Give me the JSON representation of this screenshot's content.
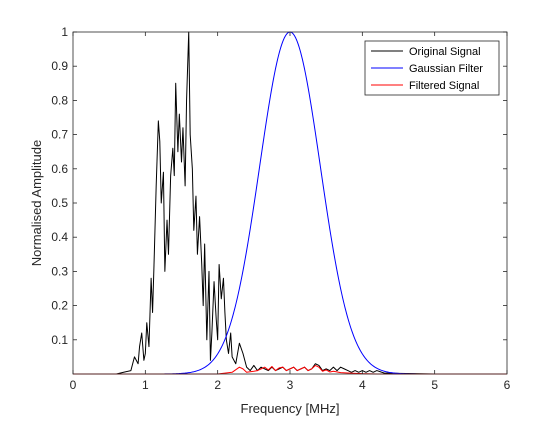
{
  "chart_data": {
    "type": "line",
    "xlabel": "Frequency [MHz]",
    "ylabel": "Normalised Amplitude",
    "xlim": [
      0,
      6
    ],
    "ylim": [
      0,
      1
    ],
    "xticks": [
      0,
      1,
      2,
      3,
      4,
      5,
      6
    ],
    "yticks": [
      0.1,
      0.2,
      0.3,
      0.4,
      0.5,
      0.6,
      0.7,
      0.8,
      0.9,
      1
    ],
    "grid": false,
    "legend_position": "top-right",
    "series": [
      {
        "name": "Original Signal",
        "color": "#000000",
        "x": [
          0,
          0.6,
          0.7,
          0.8,
          0.85,
          0.9,
          0.92,
          0.95,
          0.98,
          1.0,
          1.02,
          1.05,
          1.08,
          1.1,
          1.12,
          1.15,
          1.18,
          1.2,
          1.22,
          1.25,
          1.27,
          1.3,
          1.32,
          1.35,
          1.38,
          1.4,
          1.42,
          1.45,
          1.47,
          1.5,
          1.52,
          1.55,
          1.57,
          1.6,
          1.62,
          1.65,
          1.67,
          1.7,
          1.72,
          1.75,
          1.78,
          1.8,
          1.82,
          1.85,
          1.88,
          1.9,
          1.92,
          1.95,
          1.98,
          2.0,
          2.02,
          2.05,
          2.08,
          2.1,
          2.12,
          2.15,
          2.18,
          2.2,
          2.25,
          2.3,
          2.35,
          2.4,
          2.45,
          2.5,
          2.55,
          2.6,
          2.65,
          2.7,
          2.75,
          2.8,
          2.85,
          2.9,
          2.95,
          3.0,
          3.05,
          3.1,
          3.15,
          3.2,
          3.25,
          3.3,
          3.35,
          3.4,
          3.45,
          3.5,
          3.55,
          3.6,
          3.65,
          3.7,
          3.75,
          3.8,
          3.85,
          3.9,
          3.95,
          4.0,
          4.05,
          4.1,
          4.15,
          4.2,
          4.3,
          4.5,
          5.0,
          6.0
        ],
        "y": [
          0,
          0,
          0.005,
          0.01,
          0.05,
          0.03,
          0.08,
          0.12,
          0.04,
          0.06,
          0.15,
          0.08,
          0.28,
          0.18,
          0.32,
          0.55,
          0.74,
          0.68,
          0.5,
          0.59,
          0.3,
          0.45,
          0.35,
          0.58,
          0.66,
          0.58,
          0.85,
          0.65,
          0.76,
          0.62,
          0.72,
          0.55,
          0.8,
          1.0,
          0.7,
          0.6,
          0.42,
          0.52,
          0.35,
          0.46,
          0.32,
          0.2,
          0.38,
          0.1,
          0.3,
          0.04,
          0.12,
          0.27,
          0.16,
          0.1,
          0.32,
          0.22,
          0.28,
          0.18,
          0.1,
          0.06,
          0.12,
          0.05,
          0.03,
          0.09,
          0.06,
          0.02,
          0.01,
          0.025,
          0.01,
          0.02,
          0.015,
          0.01,
          0.02,
          0.01,
          0.015,
          0.02,
          0.01,
          0.015,
          0.02,
          0.01,
          0.015,
          0.02,
          0.01,
          0.015,
          0.03,
          0.025,
          0.01,
          0.015,
          0.01,
          0.02,
          0.01,
          0.02,
          0.015,
          0.01,
          0.005,
          0.01,
          0.005,
          0.01,
          0.005,
          0.01,
          0.005,
          0.01,
          0.003,
          0.002,
          0,
          0
        ]
      },
      {
        "name": "Gaussian Filter",
        "color": "#0000ff",
        "gaussian": {
          "center": 3.0,
          "sigma": 0.42,
          "amplitude": 1.0
        },
        "x": [
          0,
          1.5,
          1.8,
          2.0,
          2.2,
          2.4,
          2.5,
          2.6,
          2.7,
          2.8,
          2.9,
          3.0,
          3.1,
          3.2,
          3.3,
          3.4,
          3.5,
          3.6,
          3.8,
          4.0,
          4.2,
          4.5,
          6.0
        ],
        "y": [
          0,
          0.0017,
          0.0169,
          0.0589,
          0.1637,
          0.3604,
          0.4926,
          0.6357,
          0.7746,
          0.8929,
          0.9721,
          1.0,
          0.9721,
          0.8929,
          0.7746,
          0.6357,
          0.4926,
          0.3604,
          0.1637,
          0.0589,
          0.0169,
          0.0017,
          0
        ]
      },
      {
        "name": "Filtered Signal",
        "color": "#ff0000",
        "x": [
          0,
          2.0,
          2.2,
          2.3,
          2.35,
          2.4,
          2.5,
          2.55,
          2.6,
          2.65,
          2.7,
          2.75,
          2.8,
          2.85,
          2.9,
          2.95,
          3.0,
          3.05,
          3.1,
          3.15,
          3.2,
          3.25,
          3.3,
          3.35,
          3.4,
          3.45,
          3.5,
          3.55,
          3.6,
          3.7,
          3.8,
          3.9,
          4.0,
          4.2,
          6.0
        ],
        "y": [
          0,
          0,
          0.005,
          0.02,
          0.015,
          0.005,
          0.008,
          0.01,
          0.015,
          0.02,
          0.012,
          0.022,
          0.01,
          0.018,
          0.02,
          0.01,
          0.015,
          0.02,
          0.01,
          0.015,
          0.02,
          0.01,
          0.015,
          0.025,
          0.02,
          0.008,
          0.012,
          0.006,
          0.008,
          0.004,
          0.003,
          0.002,
          0.001,
          0,
          0
        ]
      }
    ]
  }
}
